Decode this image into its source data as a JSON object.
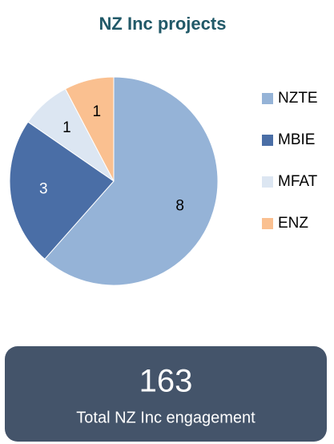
{
  "chart_data": {
    "type": "pie",
    "title": "NZ Inc projects",
    "categories": [
      "NZTE",
      "MBIE",
      "MFAT",
      "ENZ"
    ],
    "values": [
      8,
      3,
      1,
      1
    ],
    "colors": [
      "#95b3d7",
      "#4a6ea6",
      "#dce6f2",
      "#fac090"
    ],
    "legend": "right"
  },
  "summary": {
    "value": 163,
    "label": "Total NZ Inc engagement"
  }
}
